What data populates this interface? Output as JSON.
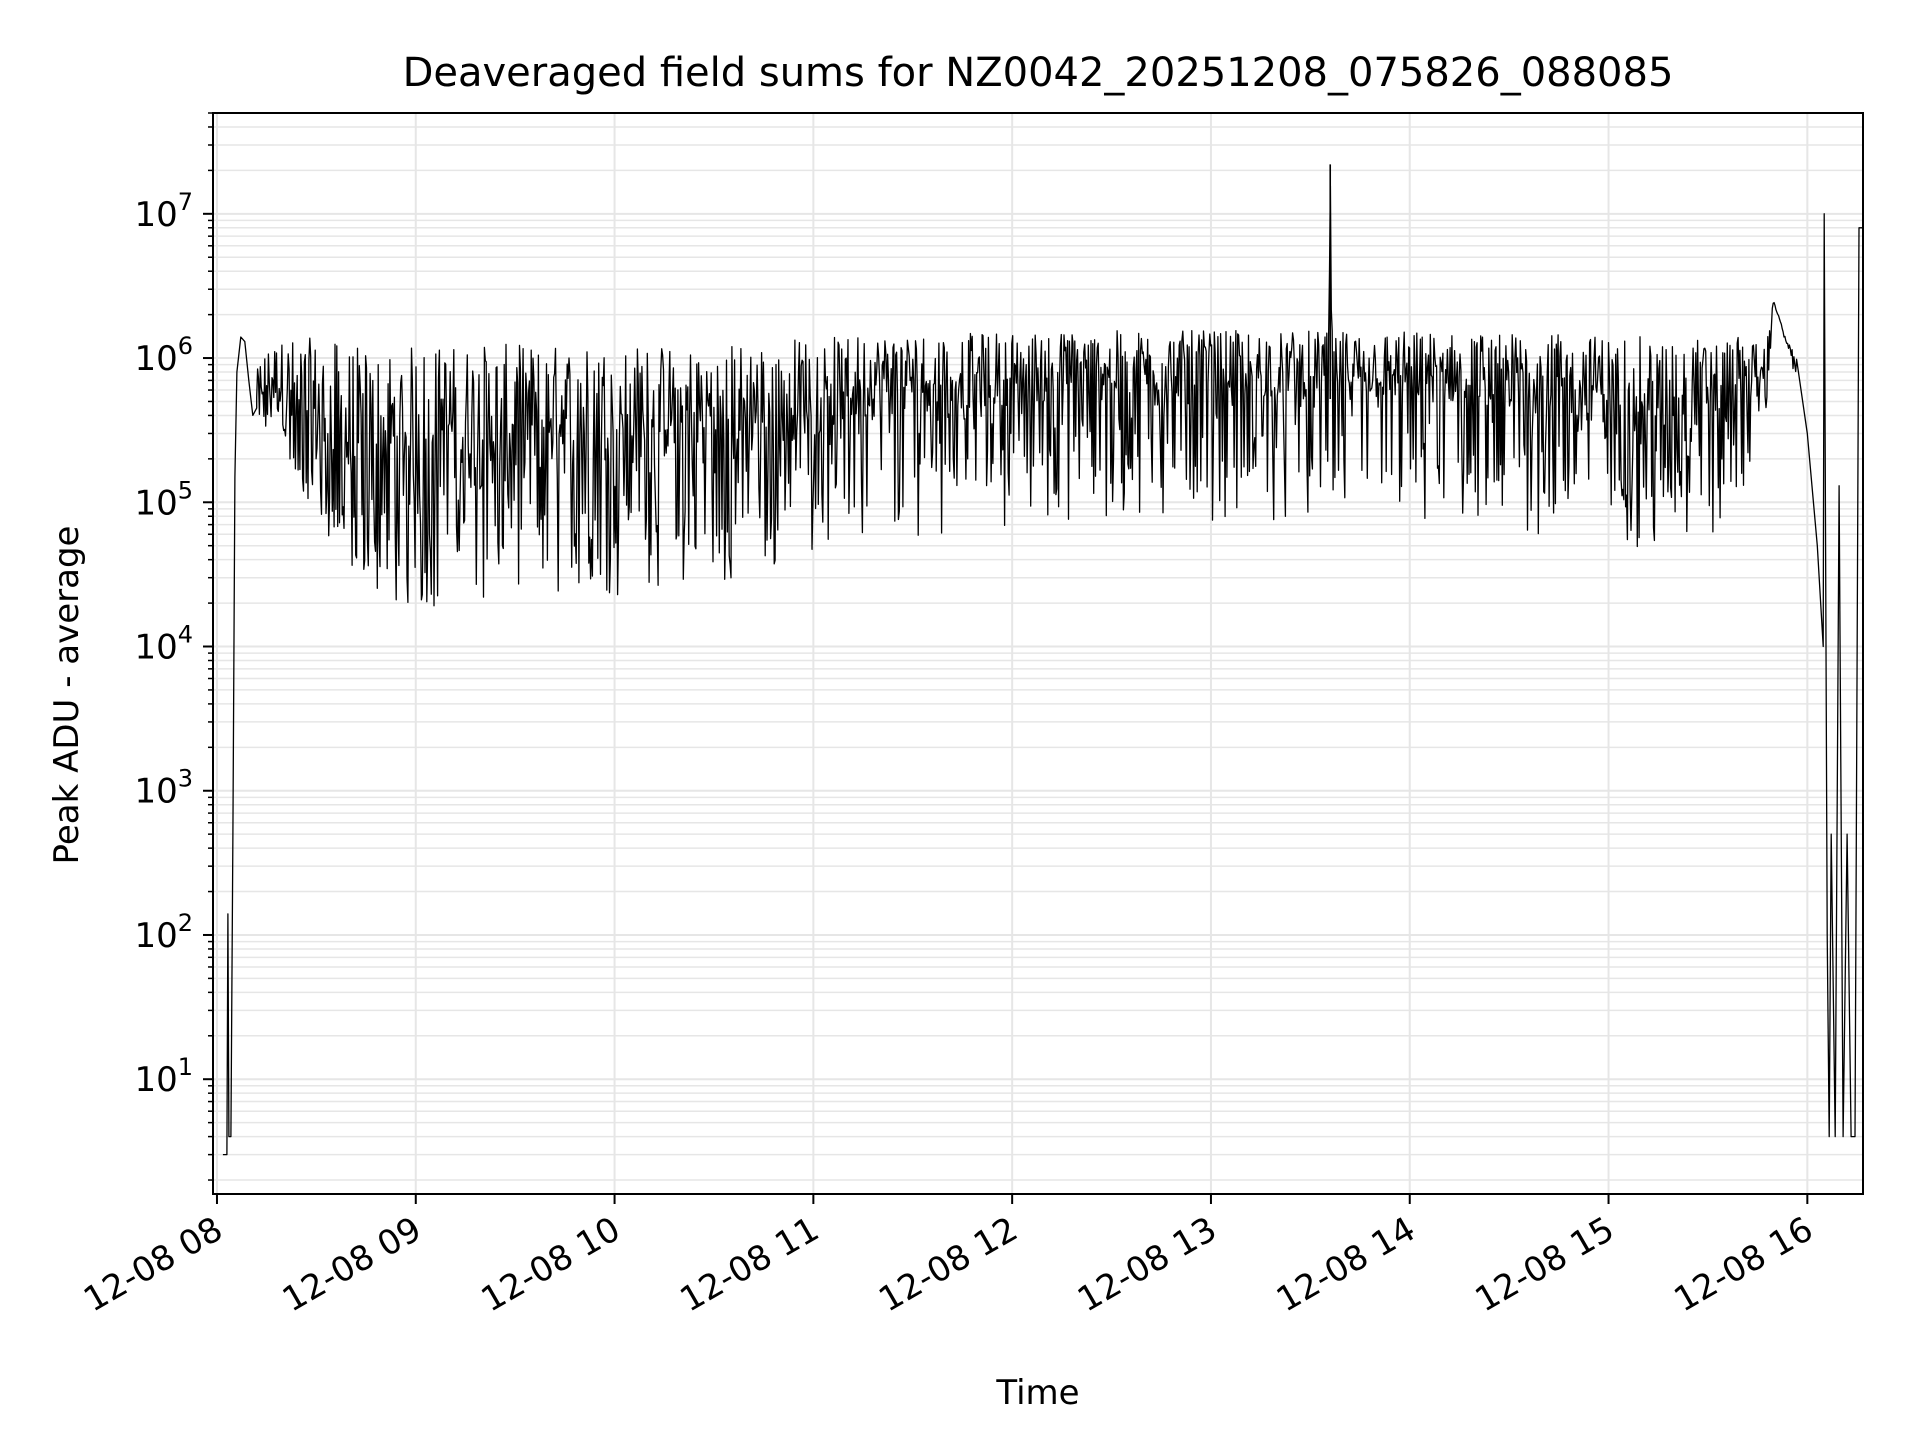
{
  "chart_data": {
    "type": "line",
    "title": "Deaveraged field sums for NZ0042_20251208_075826_088085",
    "xlabel": "Time",
    "ylabel": "Peak ADU - average",
    "yscale": "log",
    "ylim": [
      1.6,
      50000000
    ],
    "xlim_hours": [
      7.98,
      16.28
    ],
    "grid": true,
    "line_color": "#000000",
    "x_ticks": [
      {
        "value": 8,
        "label": "12-08 08"
      },
      {
        "value": 9,
        "label": "12-08 09"
      },
      {
        "value": 10,
        "label": "12-08 10"
      },
      {
        "value": 11,
        "label": "12-08 11"
      },
      {
        "value": 12,
        "label": "12-08 12"
      },
      {
        "value": 13,
        "label": "12-08 13"
      },
      {
        "value": 14,
        "label": "12-08 14"
      },
      {
        "value": 15,
        "label": "12-08 15"
      },
      {
        "value": 16,
        "label": "12-08 16"
      }
    ],
    "y_ticks": [
      {
        "value": 10,
        "base": "10",
        "exp": "1"
      },
      {
        "value": 100,
        "base": "10",
        "exp": "2"
      },
      {
        "value": 1000,
        "base": "10",
        "exp": "3"
      },
      {
        "value": 10000,
        "base": "10",
        "exp": "4"
      },
      {
        "value": 100000,
        "base": "10",
        "exp": "5"
      },
      {
        "value": 1000000,
        "base": "10",
        "exp": "6"
      },
      {
        "value": 10000000,
        "base": "10",
        "exp": "7"
      }
    ],
    "series": [
      {
        "name": "deaveraged field sums",
        "x_hours": [
          8.03,
          8.05,
          8.055,
          8.06,
          8.07,
          8.08,
          8.09,
          8.1,
          8.12,
          8.14,
          8.16,
          8.18,
          8.2,
          8.22,
          8.25,
          8.3,
          8.35,
          8.4,
          8.45,
          8.5,
          8.55,
          8.6,
          8.65,
          8.7,
          8.75,
          8.8,
          8.85,
          8.9,
          8.95,
          9.0,
          9.1,
          9.2,
          9.3,
          9.4,
          9.5,
          9.6,
          9.7,
          9.8,
          9.9,
          10.0,
          10.1,
          10.2,
          10.3,
          10.4,
          10.5,
          10.6,
          10.7,
          10.8,
          10.9,
          11.0,
          11.2,
          11.4,
          11.6,
          11.8,
          12.0,
          12.2,
          12.4,
          12.6,
          12.8,
          13.0,
          13.2,
          13.4,
          13.59,
          13.6,
          13.61,
          13.8,
          14.0,
          14.2,
          14.4,
          14.6,
          14.8,
          15.0,
          15.2,
          15.4,
          15.6,
          15.7,
          15.8,
          15.83,
          15.9,
          15.95,
          16.0,
          16.05,
          16.08,
          16.085,
          16.1,
          16.11,
          16.12,
          16.14,
          16.16,
          16.18,
          16.2,
          16.22,
          16.24,
          16.26,
          16.28
        ],
        "y_center": [
          3,
          3,
          140,
          4,
          4,
          500,
          150000,
          800000,
          1400000,
          1300000,
          700000,
          400000,
          450000,
          500000,
          450000,
          400000,
          300000,
          200000,
          180000,
          150000,
          120000,
          100000,
          80000,
          70000,
          60000,
          55000,
          60000,
          70000,
          80000,
          90000,
          100000,
          110000,
          120000,
          130000,
          140000,
          150000,
          160000,
          170000,
          180000,
          190000,
          200000,
          200000,
          180000,
          160000,
          160000,
          170000,
          200000,
          230000,
          270000,
          300000,
          350000,
          400000,
          430000,
          450000,
          470000,
          490000,
          500000,
          520000,
          530000,
          540000,
          530000,
          520000,
          520000,
          22000000,
          520000,
          510000,
          500000,
          480000,
          460000,
          420000,
          380000,
          350000,
          330000,
          320000,
          350000,
          450000,
          800000,
          2500000,
          1200000,
          800000,
          300000,
          50000,
          10000,
          10000000,
          100,
          4,
          500,
          4,
          130000,
          4,
          500,
          4,
          4,
          8000000,
          8000000
        ],
        "y_low": [
          3,
          3,
          140,
          4,
          4,
          500,
          150000,
          800000,
          1400000,
          1300000,
          600000,
          300000,
          350000,
          350000,
          300000,
          250000,
          200000,
          150000,
          100000,
          80000,
          60000,
          45000,
          35000,
          28000,
          25000,
          22000,
          20000,
          19000,
          18000,
          18000,
          18500,
          19000,
          19000,
          20000,
          20000,
          20500,
          21000,
          22000,
          22000,
          22000,
          24000,
          25000,
          27000,
          30000,
          28000,
          26000,
          30000,
          35000,
          40000,
          45000,
          50000,
          55000,
          60000,
          65000,
          70000,
          70000,
          70000,
          75000,
          75000,
          75000,
          75000,
          75000,
          75000,
          22000000,
          75000,
          70000,
          70000,
          65000,
          62000,
          58000,
          55000,
          50000,
          48000,
          48000,
          60000,
          120000,
          500000,
          2500000,
          1000000,
          600000,
          200000,
          30000,
          6000,
          10000000,
          100,
          4,
          500,
          4,
          130000,
          4,
          500,
          4,
          4,
          8000000,
          8000000
        ],
        "y_high": [
          3,
          3,
          140,
          4,
          4,
          500,
          150000,
          800000,
          1500000,
          1400000,
          900000,
          700000,
          800000,
          1000000,
          1200000,
          1300000,
          1350000,
          1400000,
          1400000,
          1350000,
          1300000,
          1300000,
          1250000,
          1200000,
          1200000,
          1200000,
          1200000,
          1200000,
          1200000,
          1250000,
          1250000,
          1250000,
          1250000,
          1250000,
          1250000,
          1250000,
          1250000,
          1250000,
          1250000,
          1250000,
          1250000,
          1250000,
          1250000,
          1250000,
          1250000,
          1300000,
          1300000,
          1350000,
          1400000,
          1400000,
          1450000,
          1500000,
          1500000,
          1500000,
          1550000,
          1550000,
          1550000,
          1550000,
          1550000,
          1550000,
          1550000,
          1550000,
          1550000,
          22000000,
          1550000,
          1550000,
          1550000,
          1500000,
          1500000,
          1500000,
          1450000,
          1450000,
          1400000,
          1400000,
          1400000,
          1400000,
          1400000,
          2500000,
          1300000,
          1000000,
          400000,
          80000,
          20000,
          10000000,
          100,
          4,
          500,
          4,
          130000,
          4,
          500,
          4,
          4,
          8000000,
          8000000
        ]
      }
    ]
  }
}
